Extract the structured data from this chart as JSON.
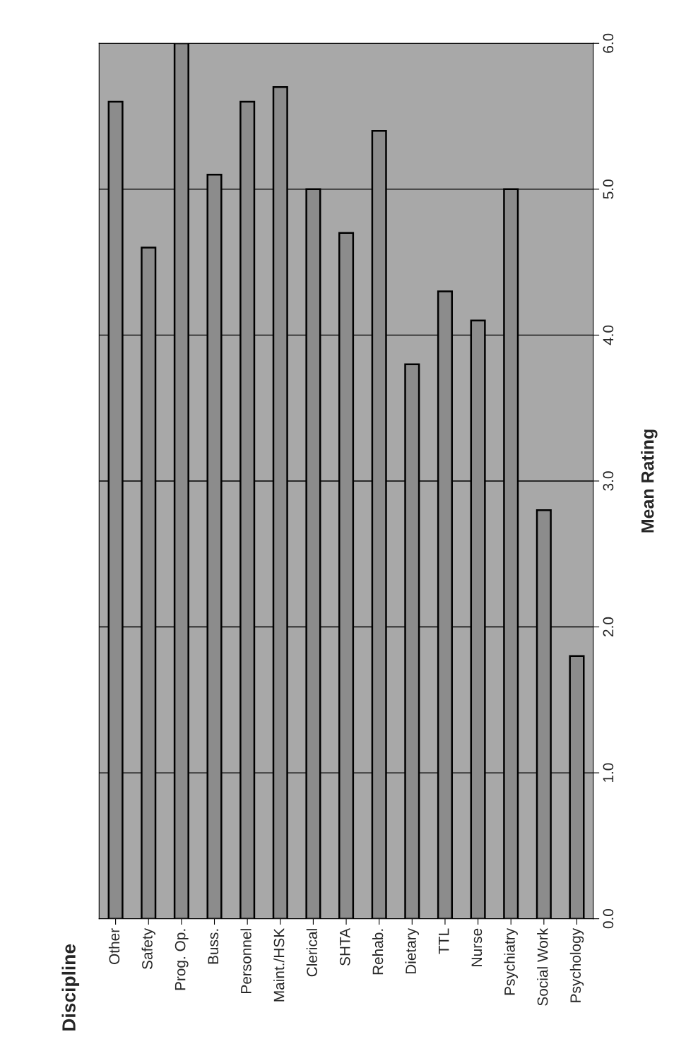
{
  "chart_data": {
    "type": "bar",
    "title": "Discipline",
    "ylabel": "Mean Rating",
    "categories": [
      "Other",
      "Safety",
      "Prog. Op.",
      "Buss.",
      "Personnel",
      "Maint./HSK",
      "Clerical",
      "SHTA",
      "Rehab.",
      "Dietary",
      "TTL",
      "Nurse",
      "Psychiatry",
      "Social Work",
      "Psychology"
    ],
    "values": [
      5.6,
      4.6,
      6.0,
      5.1,
      5.6,
      5.7,
      5.0,
      4.7,
      5.4,
      3.8,
      4.3,
      4.1,
      5.0,
      2.8,
      1.8
    ],
    "color": "#8c8c8c",
    "ylim": [
      0,
      6
    ],
    "yticks": [
      {
        "value": 0,
        "label": "0.0"
      },
      {
        "value": 1,
        "label": "1.0"
      },
      {
        "value": 2,
        "label": "2.0"
      },
      {
        "value": 3,
        "label": "3.0"
      },
      {
        "value": 4,
        "label": "4.0"
      },
      {
        "value": 5,
        "label": "5.0"
      },
      {
        "value": 6,
        "label": "6.0"
      }
    ],
    "grid": "y"
  }
}
